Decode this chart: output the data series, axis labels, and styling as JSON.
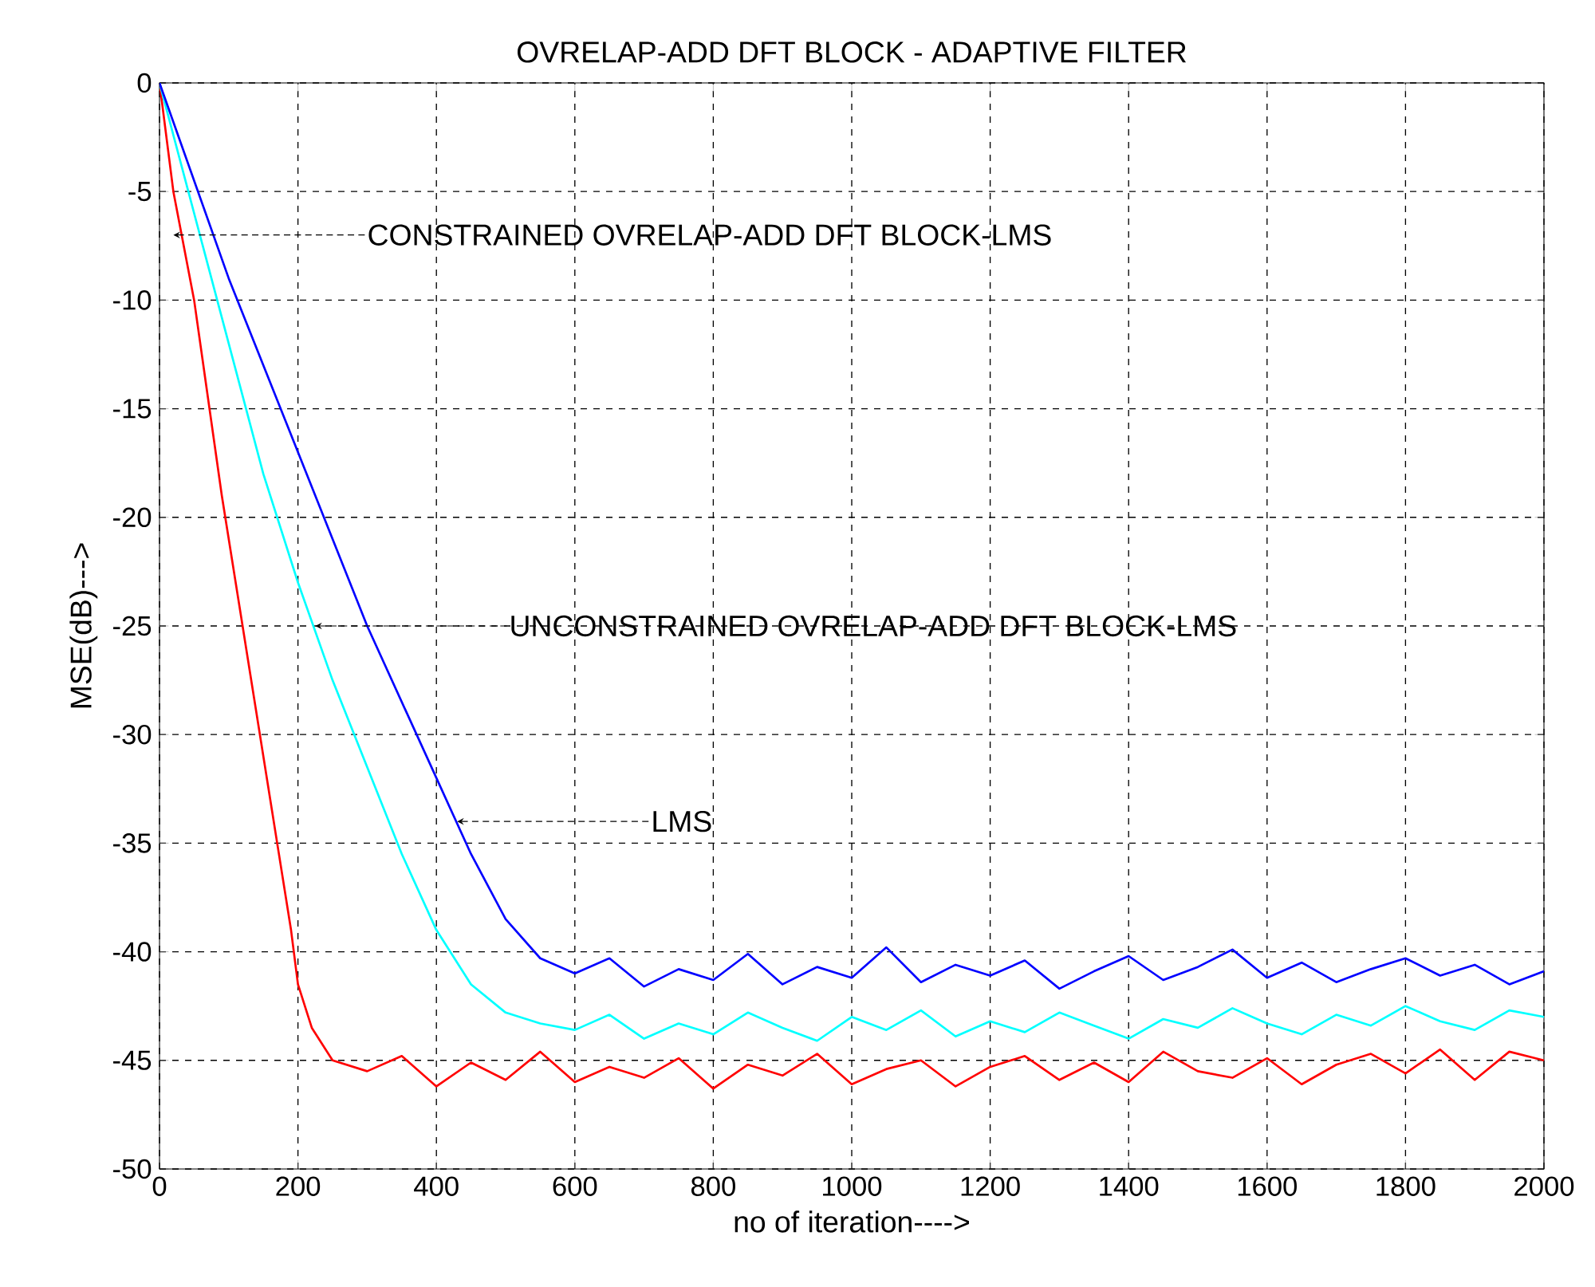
{
  "chart_data": {
    "type": "line",
    "title": "OVRELAP-ADD DFT BLOCK - ADAPTIVE  FILTER",
    "xlabel": "no of iteration---->",
    "ylabel": "MSE(dB)--->",
    "xlim": [
      0,
      2000
    ],
    "ylim": [
      -50,
      0
    ],
    "xticks": [
      0,
      200,
      400,
      600,
      800,
      1000,
      1200,
      1400,
      1600,
      1800,
      2000
    ],
    "yticks": [
      0,
      -5,
      -10,
      -15,
      -20,
      -25,
      -30,
      -35,
      -40,
      -45,
      -50
    ],
    "grid": true,
    "series": [
      {
        "color": "#ff0000",
        "x": [
          0,
          20,
          50,
          90,
          130,
          170,
          190,
          200,
          220,
          250,
          300,
          350,
          400,
          450,
          500,
          550,
          600,
          650,
          700,
          750,
          800,
          850,
          900,
          950,
          1000,
          1050,
          1100,
          1150,
          1200,
          1250,
          1300,
          1350,
          1400,
          1450,
          1500,
          1550,
          1600,
          1650,
          1700,
          1750,
          1800,
          1850,
          1900,
          1950,
          2000
        ],
        "values": [
          0,
          -5,
          -10,
          -19,
          -27,
          -35,
          -39,
          -41.5,
          -43.5,
          -45,
          -45.5,
          -44.8,
          -46.2,
          -45.1,
          -45.9,
          -44.6,
          -46.0,
          -45.3,
          -45.8,
          -44.9,
          -46.3,
          -45.2,
          -45.7,
          -44.7,
          -46.1,
          -45.4,
          -45.0,
          -46.2,
          -45.3,
          -44.8,
          -45.9,
          -45.1,
          -46.0,
          -44.6,
          -45.5,
          -45.8,
          -44.9,
          -46.1,
          -45.2,
          -44.7,
          -45.6,
          -44.5,
          -45.9,
          -44.6,
          -45.0
        ]
      },
      {
        "color": "#00ffff",
        "x": [
          0,
          50,
          100,
          150,
          200,
          250,
          300,
          350,
          400,
          450,
          500,
          550,
          600,
          650,
          700,
          750,
          800,
          850,
          900,
          950,
          1000,
          1050,
          1100,
          1150,
          1200,
          1250,
          1300,
          1350,
          1400,
          1450,
          1500,
          1550,
          1600,
          1650,
          1700,
          1750,
          1800,
          1850,
          1900,
          1950,
          2000
        ],
        "values": [
          0,
          -6,
          -12,
          -18,
          -23,
          -27.5,
          -31.5,
          -35.5,
          -39,
          -41.5,
          -42.8,
          -43.3,
          -43.6,
          -42.9,
          -44.0,
          -43.3,
          -43.8,
          -42.8,
          -43.5,
          -44.1,
          -43.0,
          -43.6,
          -42.7,
          -43.9,
          -43.2,
          -43.7,
          -42.8,
          -43.4,
          -44.0,
          -43.1,
          -43.5,
          -42.6,
          -43.3,
          -43.8,
          -42.9,
          -43.4,
          -42.5,
          -43.2,
          -43.6,
          -42.7,
          -43.0
        ]
      },
      {
        "color": "#0000ff",
        "x": [
          0,
          100,
          200,
          300,
          400,
          450,
          500,
          550,
          600,
          650,
          700,
          750,
          800,
          850,
          900,
          950,
          1000,
          1050,
          1100,
          1150,
          1200,
          1250,
          1300,
          1350,
          1400,
          1450,
          1500,
          1550,
          1600,
          1650,
          1700,
          1750,
          1800,
          1850,
          1900,
          1950,
          2000
        ],
        "values": [
          0,
          -9,
          -17,
          -25,
          -32,
          -35.5,
          -38.5,
          -40.3,
          -41.0,
          -40.3,
          -41.6,
          -40.8,
          -41.3,
          -40.1,
          -41.5,
          -40.7,
          -41.2,
          -39.8,
          -41.4,
          -40.6,
          -41.1,
          -40.4,
          -41.7,
          -40.9,
          -40.2,
          -41.3,
          -40.7,
          -39.9,
          -41.2,
          -40.5,
          -41.4,
          -40.8,
          -40.3,
          -41.1,
          -40.6,
          -41.5,
          -40.9
        ]
      }
    ],
    "annotations": [
      {
        "text": "CONSTRAINED OVRELAP-ADD DFT BLOCK-LMS",
        "x": 20,
        "y": -7
      },
      {
        "text": "UNCONSTRAINED OVRELAP-ADD DFT BLOCK-LMS",
        "x": 225,
        "y": -25
      },
      {
        "text": "LMS",
        "x": 430,
        "y": -34
      }
    ]
  }
}
